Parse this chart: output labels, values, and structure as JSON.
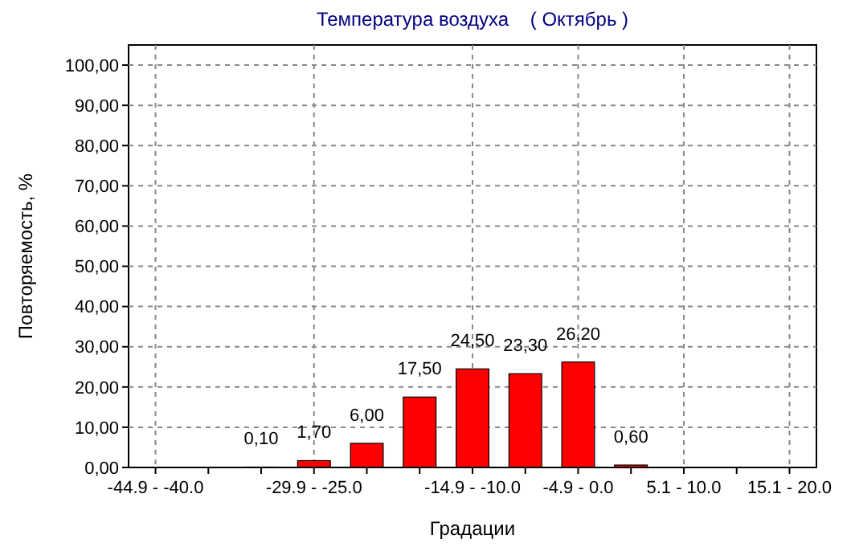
{
  "chart_data": {
    "type": "bar",
    "title": "Температура воздуха    ( Октябрь )",
    "xlabel": "Градации",
    "ylabel": "Повторяемость, %",
    "categories": [
      "-44.9 - -40.0",
      null,
      null,
      "-29.9 - -25.0",
      null,
      null,
      "-14.9 - -10.0",
      null,
      "-4.9 - 0.0",
      null,
      "5.1 - 10.0",
      null,
      "15.1 - 20.0"
    ],
    "values": [
      null,
      null,
      0.1,
      1.7,
      6.0,
      17.5,
      24.5,
      23.3,
      26.2,
      0.6,
      null,
      null,
      null
    ],
    "value_labels": [
      null,
      null,
      "0,10",
      "1,70",
      "6,00",
      "17,50",
      "24,50",
      "23,30",
      "26,20",
      "0,60",
      null,
      null,
      null
    ],
    "color": "#ff0000",
    "ylim": [
      0,
      105
    ],
    "yticks": [
      {
        "value": 0,
        "label": "0,00"
      },
      {
        "value": 10,
        "label": "10,00"
      },
      {
        "value": 20,
        "label": "20,00"
      },
      {
        "value": 30,
        "label": "30,00"
      },
      {
        "value": 40,
        "label": "40,00"
      },
      {
        "value": 50,
        "label": "50,00"
      },
      {
        "value": 60,
        "label": "60,00"
      },
      {
        "value": 70,
        "label": "70,00"
      },
      {
        "value": 80,
        "label": "80,00"
      },
      {
        "value": 90,
        "label": "90,00"
      },
      {
        "value": 100,
        "label": "100,00"
      }
    ],
    "grid": true
  }
}
